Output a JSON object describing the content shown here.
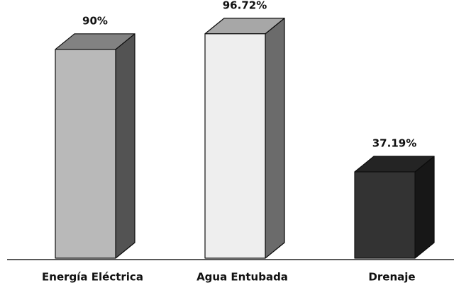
{
  "chart_data": {
    "type": "bar3d",
    "categories": [
      "Energía Eléctrica",
      "Agua Entubada",
      "Drenaje"
    ],
    "values": [
      90,
      96.72,
      37.19
    ],
    "value_labels": [
      "90%",
      "96.72%",
      "37.19%"
    ],
    "colors": [
      "#b9b9b9",
      "#eeeeee",
      "#333333"
    ]
  }
}
